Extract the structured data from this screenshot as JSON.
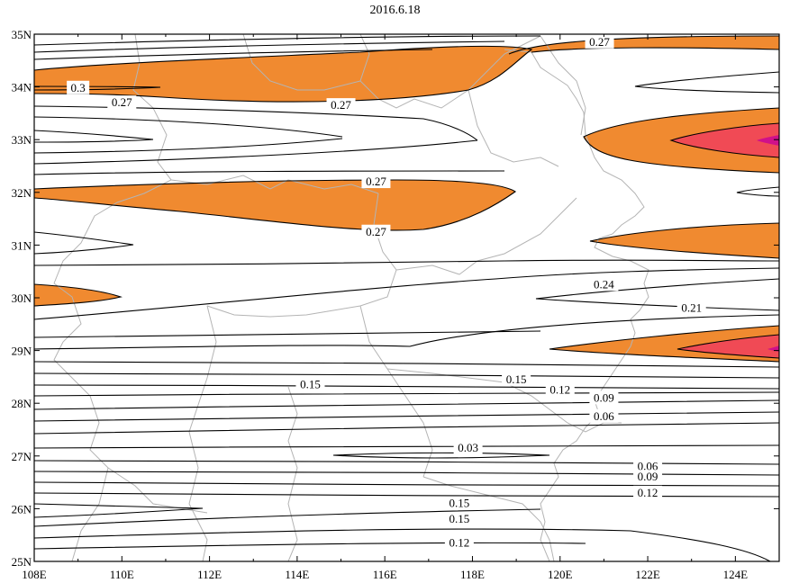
{
  "title": "2016.6.18",
  "axes": {
    "x_ticks": [
      "108E",
      "110E",
      "112E",
      "114E",
      "116E",
      "118E",
      "120E",
      "122E",
      "124E"
    ],
    "y_ticks": [
      "35N",
      "34N",
      "33N",
      "32N",
      "31N",
      "30N",
      "29N",
      "28N",
      "27N",
      "26N",
      "25N"
    ],
    "x_range": [
      108,
      125
    ],
    "y_range": [
      25,
      35
    ]
  },
  "colors": {
    "shade_low": "#f08a30",
    "shade_mid": "#f04a55",
    "shade_high": "#d0108a",
    "contour": "#000000",
    "border": "#b4b4b4"
  },
  "contour_labels": [
    {
      "text": "0.27",
      "lon": 120.9,
      "lat": 34.85
    },
    {
      "text": "0.3",
      "lon": 109.0,
      "lat": 33.98
    },
    {
      "text": "0.27",
      "lon": 110.0,
      "lat": 33.7
    },
    {
      "text": "0.27",
      "lon": 115.0,
      "lat": 33.65
    },
    {
      "text": "0.27",
      "lon": 115.8,
      "lat": 32.2
    },
    {
      "text": "0.27",
      "lon": 115.8,
      "lat": 31.25
    },
    {
      "text": "0.24",
      "lon": 121.0,
      "lat": 30.25
    },
    {
      "text": "0.21",
      "lon": 123.0,
      "lat": 29.8
    },
    {
      "text": "0.15",
      "lon": 114.3,
      "lat": 28.35
    },
    {
      "text": "0.15",
      "lon": 119.0,
      "lat": 28.45
    },
    {
      "text": "0.12",
      "lon": 120.0,
      "lat": 28.25
    },
    {
      "text": "0.09",
      "lon": 121.0,
      "lat": 28.1
    },
    {
      "text": "0.06",
      "lon": 121.0,
      "lat": 27.75
    },
    {
      "text": "0.03",
      "lon": 117.9,
      "lat": 27.15
    },
    {
      "text": "0.06",
      "lon": 122.0,
      "lat": 26.8
    },
    {
      "text": "0.09",
      "lon": 122.0,
      "lat": 26.6
    },
    {
      "text": "0.12",
      "lon": 122.0,
      "lat": 26.3
    },
    {
      "text": "0.15",
      "lon": 117.7,
      "lat": 26.1
    },
    {
      "text": "0.15",
      "lon": 117.7,
      "lat": 25.8
    },
    {
      "text": "0.12",
      "lon": 117.7,
      "lat": 25.35
    }
  ]
}
